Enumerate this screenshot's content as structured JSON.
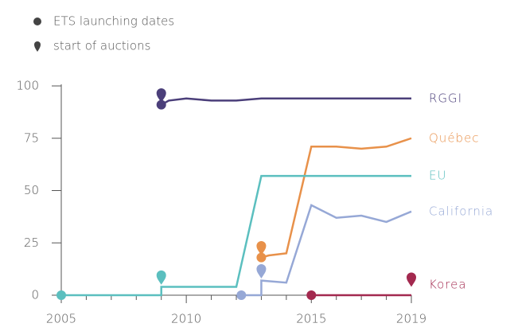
{
  "chart_data": {
    "type": "line",
    "legend": [
      {
        "symbol": "circle",
        "label": "ETS launching dates"
      },
      {
        "symbol": "pin",
        "label": "start of auctions"
      }
    ],
    "xlim": [
      2005,
      2019
    ],
    "xticks": [
      2005,
      2010,
      2015,
      2019
    ],
    "xminorticks": [
      2006,
      2007,
      2008,
      2009,
      2011,
      2012,
      2013,
      2014,
      2016,
      2017,
      2018
    ],
    "ylim": [
      0,
      100
    ],
    "yticks": [
      0,
      25,
      50,
      75,
      100
    ],
    "series": [
      {
        "name": "RGGI",
        "color": "#4b3f7a",
        "x": [
          2009,
          2009.3,
          2010,
          2011,
          2012,
          2013,
          2014,
          2015,
          2016,
          2017,
          2018,
          2019
        ],
        "values": [
          91,
          93,
          94,
          93,
          93,
          94,
          94,
          94,
          94,
          94,
          94,
          94
        ],
        "auction": {
          "x": 2009,
          "y": 92
        }
      },
      {
        "name": "Québec",
        "color": "#e8914a",
        "x": [
          2013,
          2013.3,
          2014,
          2015,
          2016,
          2017,
          2018,
          2019
        ],
        "values": [
          18,
          19,
          20,
          71,
          71,
          70,
          71,
          75
        ],
        "auction": {
          "x": 2013,
          "y": 19
        }
      },
      {
        "name": "EU",
        "color": "#5bbfbf",
        "x": [
          2005,
          2009,
          2009,
          2012,
          2013,
          2019
        ],
        "values": [
          0,
          0,
          4,
          4,
          57,
          57
        ],
        "auction": {
          "x": 2009,
          "y": 5
        }
      },
      {
        "name": "California",
        "color": "#96a8d6",
        "x": [
          2012.2,
          2013,
          2013,
          2014,
          2015,
          2016,
          2017,
          2018,
          2019
        ],
        "values": [
          0,
          0,
          7,
          6,
          43,
          37,
          38,
          35,
          40
        ],
        "auction": {
          "x": 2013,
          "y": 8
        }
      },
      {
        "name": "Korea",
        "color": "#a3294f",
        "x": [
          2015,
          2019
        ],
        "values": [
          0,
          0
        ],
        "auction": {
          "x": 2019,
          "y": 4
        }
      }
    ]
  }
}
